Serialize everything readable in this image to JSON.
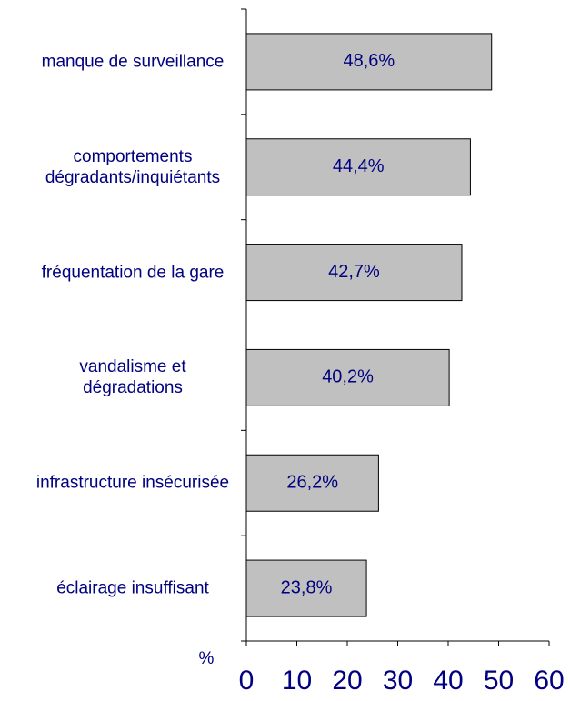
{
  "chart_data": {
    "type": "bar",
    "orientation": "horizontal",
    "categories": [
      "manque de surveillance",
      "comportements dégradants/inquiétants",
      "fréquentation de la gare",
      "vandalisme et dégradations",
      "infrastructure insécurisée",
      "éclairage insuffisant"
    ],
    "values": [
      48.6,
      44.4,
      42.7,
      40.2,
      26.2,
      23.8
    ],
    "value_labels": [
      "48,6%",
      "44,4%",
      "42,7%",
      "40,2%",
      "26,2%",
      "23,8%"
    ],
    "color": "#c0c0c0",
    "x_label": "%",
    "xlim": [
      0,
      60
    ],
    "xticks": [
      0,
      10,
      20,
      30,
      40,
      50,
      60
    ]
  }
}
